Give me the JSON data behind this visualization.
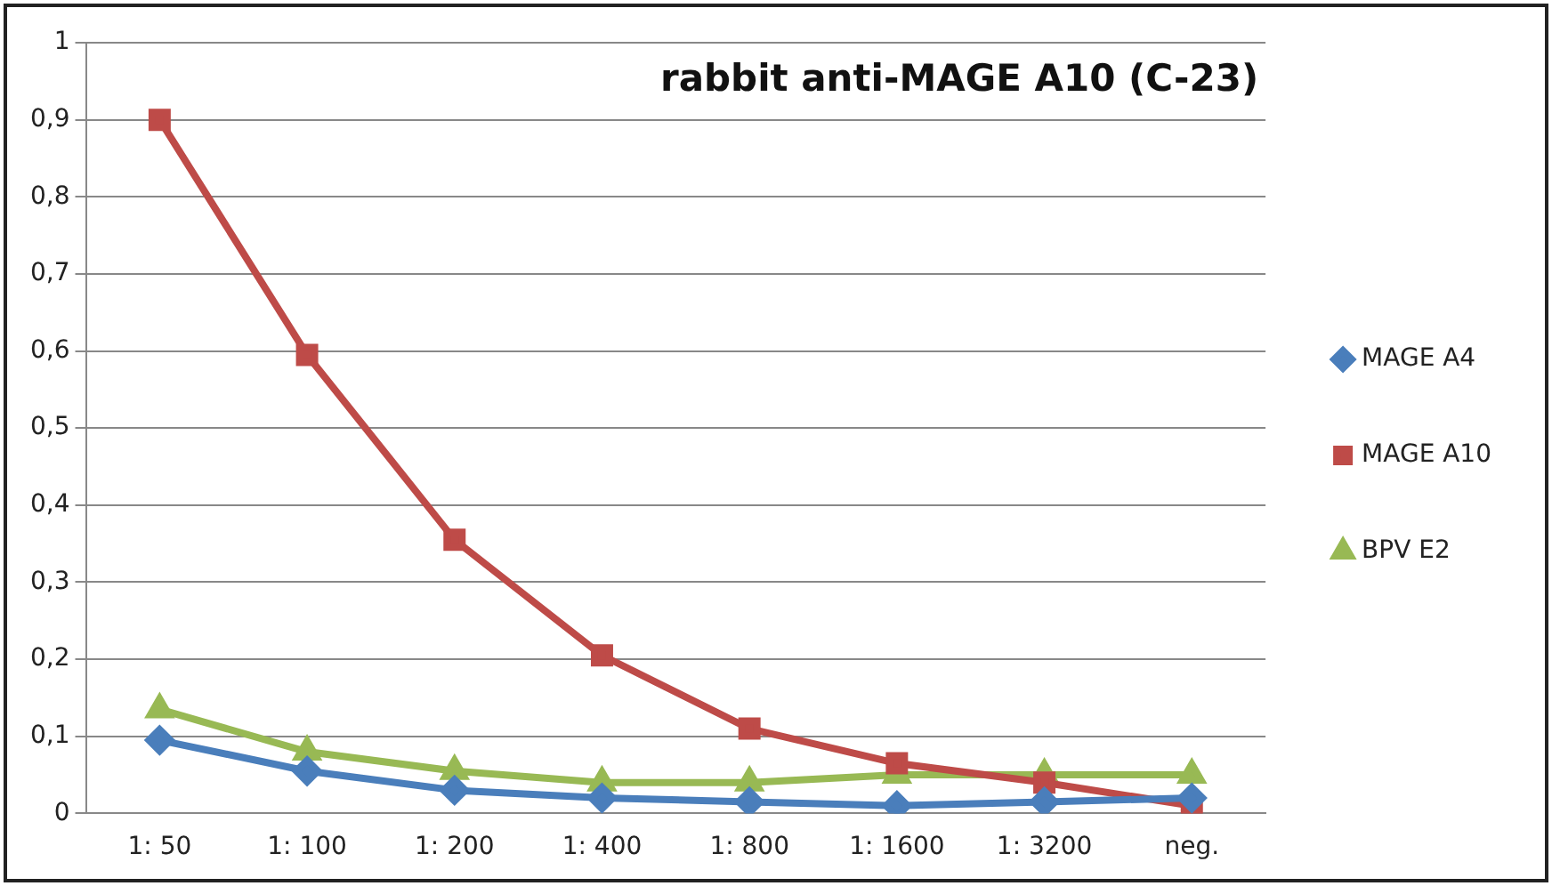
{
  "chart_data": {
    "type": "line",
    "title": "rabbit anti-MAGE A10 (C-23)",
    "categories": [
      "1: 50",
      "1: 100",
      "1: 200",
      "1: 400",
      "1: 800",
      "1: 1600",
      "1: 3200",
      "neg."
    ],
    "series": [
      {
        "name": "MAGE A4",
        "color": "#4a7ebb",
        "marker": "diamond",
        "values": [
          0.095,
          0.055,
          0.03,
          0.02,
          0.015,
          0.01,
          0.015,
          0.02
        ]
      },
      {
        "name": "MAGE A10",
        "color": "#be4b48",
        "marker": "square",
        "values": [
          0.9,
          0.595,
          0.355,
          0.205,
          0.11,
          0.065,
          0.04,
          0.01
        ]
      },
      {
        "name": "BPV E2",
        "color": "#98b954",
        "marker": "triangle",
        "values": [
          0.135,
          0.08,
          0.055,
          0.04,
          0.04,
          0.05,
          0.05,
          0.05
        ]
      }
    ],
    "ylim": [
      0,
      1
    ],
    "yticks": [
      0,
      {
        "value": 0.1,
        "label": "0,1"
      },
      {
        "value": 0.2,
        "label": "0,2"
      },
      {
        "value": 0.3,
        "label": "0,3"
      },
      {
        "value": 0.4,
        "label": "0,4"
      },
      {
        "value": 0.5,
        "label": "0,5"
      },
      {
        "value": 0.6,
        "label": "0,6"
      },
      {
        "value": 0.7,
        "label": "0,7"
      },
      {
        "value": 0.8,
        "label": "0,8"
      },
      {
        "value": 0.9,
        "label": "0,9"
      },
      1
    ],
    "grid": "y",
    "legend": "right",
    "line_style": "solid"
  }
}
